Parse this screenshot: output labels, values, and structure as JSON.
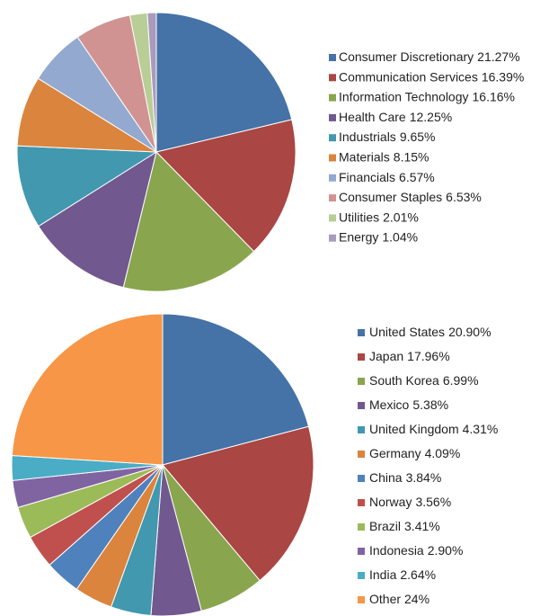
{
  "chart_data": [
    {
      "type": "pie",
      "categories": [
        "Consumer Discretionary",
        "Communication Services",
        "Information Technology",
        "Health Care",
        "Industrials",
        "Materials",
        "Financials",
        "Consumer Staples",
        "Utilities",
        "Energy"
      ],
      "values": [
        21.27,
        16.39,
        16.16,
        12.25,
        9.65,
        8.15,
        6.57,
        6.53,
        2.01,
        1.04
      ],
      "value_labels": [
        "21.27%",
        "16.39%",
        "16.16%",
        "12.25%",
        "9.65%",
        "8.15%",
        "6.57%",
        "6.53%",
        "2.01%",
        "1.04%"
      ],
      "colors": [
        "#4572a7",
        "#aa4643",
        "#89a54e",
        "#71588f",
        "#4198af",
        "#db843d",
        "#93a9cf",
        "#d19392",
        "#b9cd96",
        "#a99bbd"
      ]
    },
    {
      "type": "pie",
      "categories": [
        "United States",
        "Japan",
        "South Korea",
        "Mexico",
        "United Kingdom",
        "Germany",
        "China",
        "Norway",
        "Brazil",
        "Indonesia",
        "India",
        "Other"
      ],
      "values": [
        20.9,
        17.96,
        6.99,
        5.38,
        4.31,
        4.09,
        3.84,
        3.56,
        3.41,
        2.9,
        2.64,
        24
      ],
      "value_labels": [
        "20.90%",
        "17.96%",
        "6.99%",
        "5.38%",
        "4.31%",
        "4.09%",
        "3.84%",
        "3.56%",
        "3.41%",
        "2.90%",
        "2.64%",
        "24%"
      ],
      "colors": [
        "#4572a7",
        "#aa4643",
        "#89a54e",
        "#71588f",
        "#4198af",
        "#db843d",
        "#4f81bd",
        "#c0504d",
        "#9bbb59",
        "#8064a2",
        "#4bacc6",
        "#f79646"
      ]
    }
  ]
}
